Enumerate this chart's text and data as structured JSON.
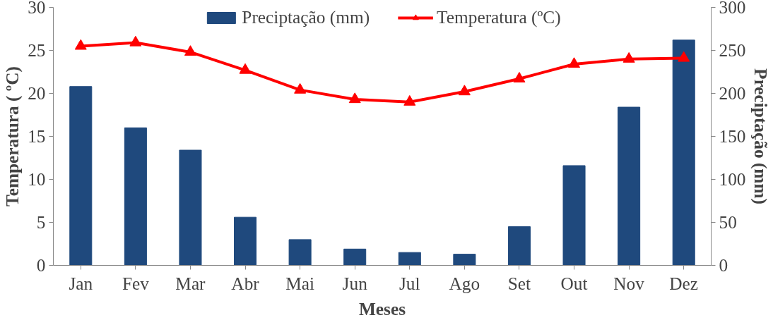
{
  "chart_data": {
    "type": "bar",
    "xlabel": "Meses",
    "ylabel": "Temperatura ( ºC)",
    "y2label": "Preciptação (mm)",
    "categories": [
      "Jan",
      "Fev",
      "Mar",
      "Abr",
      "Mai",
      "Jun",
      "Jul",
      "Ago",
      "Set",
      "Out",
      "Nov",
      "Dez"
    ],
    "series": [
      {
        "name": "Preciptação (mm)",
        "axis": "y2",
        "color": "#1f497d",
        "values": [
          208,
          160,
          134,
          56,
          30,
          19,
          15,
          13,
          45,
          116,
          184,
          262
        ]
      },
      {
        "name": "Temperatura (ºC)",
        "type": "line",
        "axis": "y",
        "color": "#ff0000",
        "marker": "triangle",
        "values": [
          25.5,
          25.9,
          24.8,
          22.7,
          20.4,
          19.3,
          19.0,
          20.2,
          21.7,
          23.4,
          24.0,
          24.1
        ]
      }
    ],
    "ylim": [
      0,
      30
    ],
    "yticks": [
      0,
      5,
      10,
      15,
      20,
      25,
      30
    ],
    "y2lim": [
      0,
      300
    ],
    "y2ticks": [
      0,
      50,
      100,
      150,
      200,
      250,
      300
    ],
    "legend": "top",
    "grid": false
  }
}
